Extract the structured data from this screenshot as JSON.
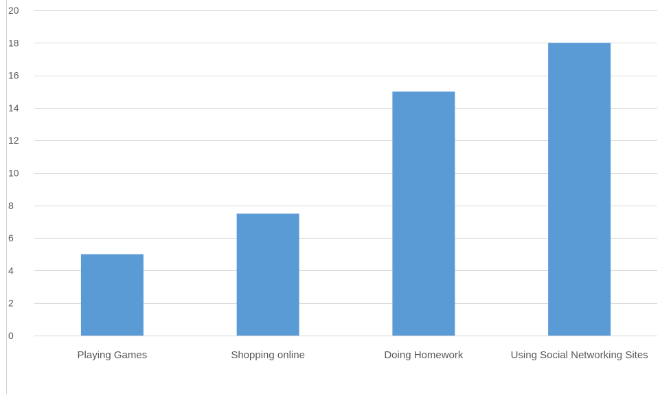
{
  "chart_data": {
    "type": "bar",
    "title": "",
    "xlabel": "",
    "ylabel": "",
    "categories": [
      "Playing Games",
      "Shopping online",
      "Doing Homework",
      "Using Social Networking Sites"
    ],
    "values": [
      5,
      7.5,
      15,
      18
    ],
    "ylim": [
      0,
      20
    ],
    "yticks": [
      0,
      2,
      4,
      6,
      8,
      10,
      12,
      14,
      16,
      18,
      20
    ],
    "grid": true,
    "legend": "none",
    "bar_color": "#5b9bd5"
  }
}
